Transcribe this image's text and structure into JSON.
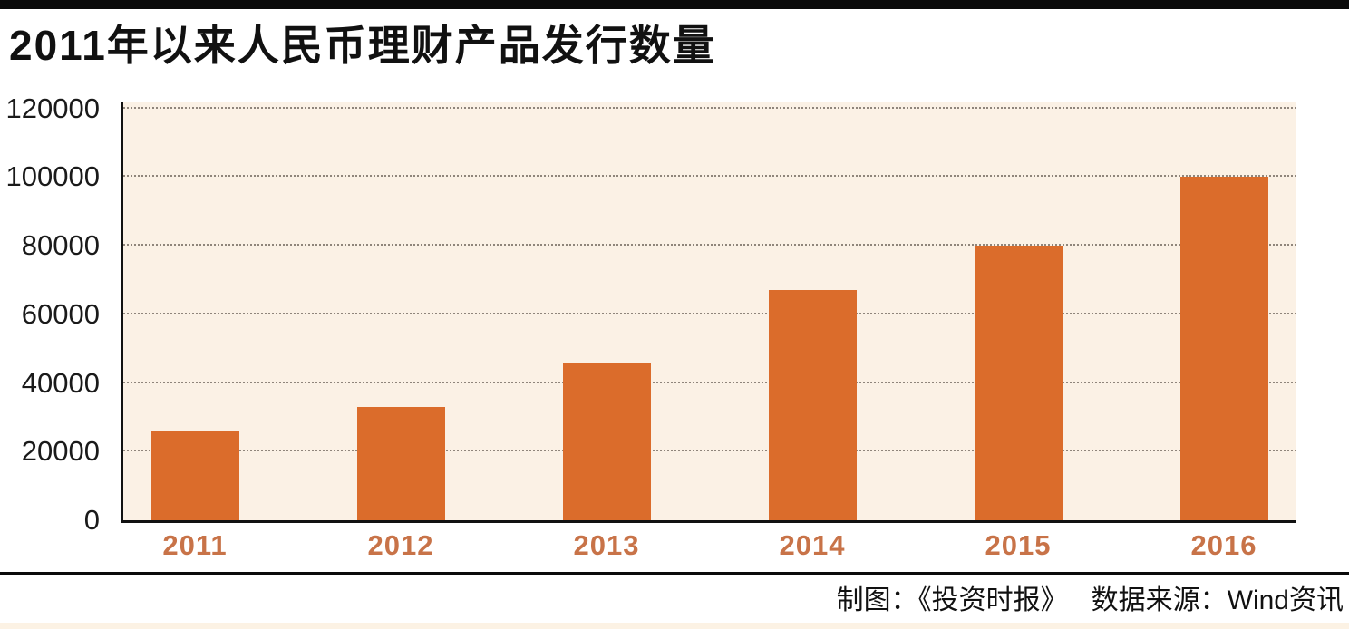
{
  "header": {
    "title": "2011年以来人民币理财产品发行数量"
  },
  "footer": {
    "credit": "制图：《投资时报》",
    "source": "数据来源：Wind资讯"
  },
  "chart_data": {
    "type": "bar",
    "title": "2011年以来人民币理财产品发行数量",
    "categories": [
      "2011",
      "2012",
      "2013",
      "2014",
      "2015",
      "2016"
    ],
    "values": [
      26000,
      33000,
      46000,
      67000,
      80000,
      100000
    ],
    "xlabel": "",
    "ylabel": "",
    "yticks": [
      0,
      20000,
      40000,
      60000,
      80000,
      100000,
      120000
    ],
    "ytick_labels": [
      "0",
      "20000",
      "40000",
      "60000",
      "80000",
      "100000",
      "120000"
    ],
    "ylim": [
      0,
      120000
    ],
    "grid": "horizontal-dotted",
    "legend": "none",
    "colors": {
      "bar": "#db6c2b",
      "plot_background": "#fbf1e5",
      "x_tick_label": "#c87348",
      "y_tick_label": "#1a1a1a",
      "axis": "#111111",
      "gridline": "#8f857b",
      "accent_bar": "#0a0a0a",
      "bottom_strip": "#fcf2e4"
    }
  }
}
